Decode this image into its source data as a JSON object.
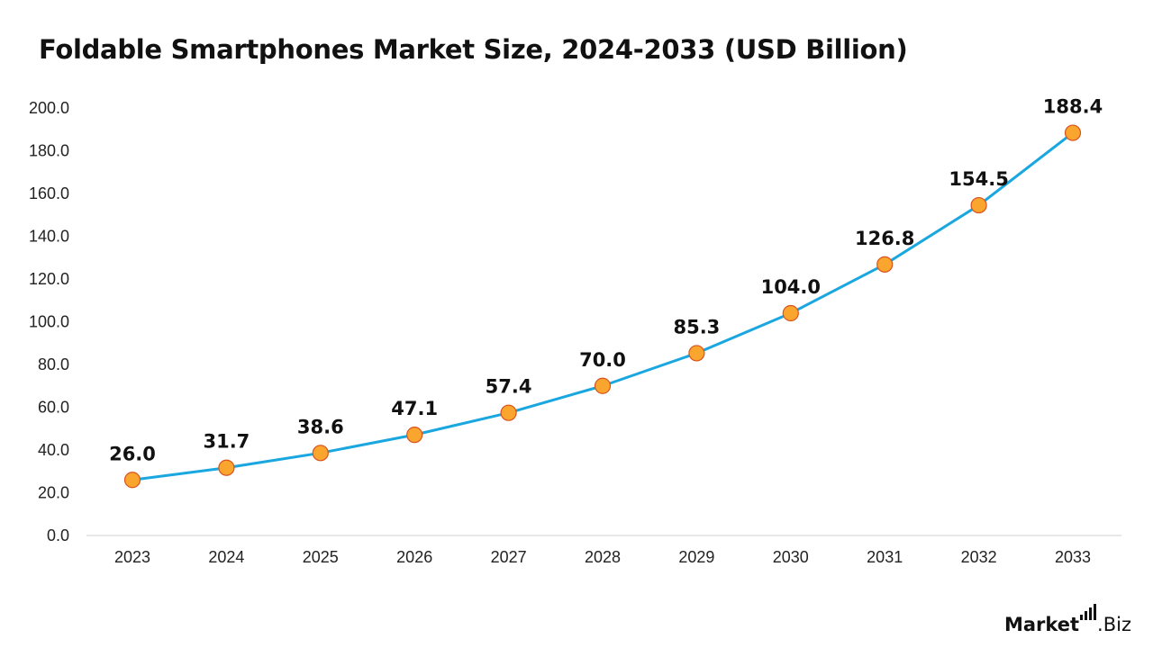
{
  "chart_data": {
    "type": "line",
    "title": "Foldable Smartphones Market Size, 2024-2033 (USD Billion)",
    "categories": [
      "2023",
      "2024",
      "2025",
      "2026",
      "2027",
      "2028",
      "2029",
      "2030",
      "2031",
      "2032",
      "2033"
    ],
    "values": [
      26.0,
      31.7,
      38.6,
      47.1,
      57.4,
      70.0,
      85.3,
      104.0,
      126.8,
      154.5,
      188.4
    ],
    "data_labels": [
      "26.0",
      "31.7",
      "38.6",
      "47.1",
      "57.4",
      "70.0",
      "85.3",
      "104.0",
      "126.8",
      "154.5",
      "188.4"
    ],
    "ylim": [
      0,
      200
    ],
    "yticks": [
      "0.0",
      "20.0",
      "40.0",
      "60.0",
      "80.0",
      "100.0",
      "120.0",
      "140.0",
      "160.0",
      "180.0",
      "200.0"
    ],
    "xlabel": "",
    "ylabel": "",
    "grid": false,
    "legend": "none",
    "colors": {
      "line": "#1aa7e0",
      "marker_fill": "#f9a52e",
      "marker_stroke": "#d9531e",
      "axis": "#d0d0d0"
    }
  },
  "brand": {
    "logo_word": "Market",
    "logo_ext": ".Biz"
  }
}
